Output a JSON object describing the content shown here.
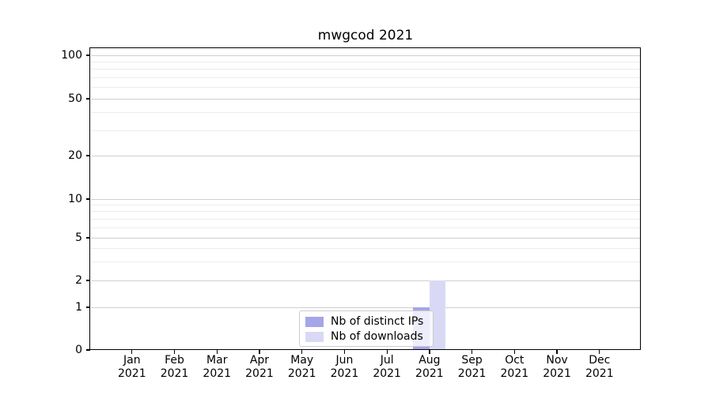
{
  "chart_data": {
    "type": "bar",
    "title": "mwgcod 2021",
    "x_months": [
      "Jan",
      "Feb",
      "Mar",
      "Apr",
      "May",
      "Jun",
      "Jul",
      "Aug",
      "Sep",
      "Oct",
      "Nov",
      "Dec"
    ],
    "x_year": "2021",
    "series": [
      {
        "name": "Nb of distinct IPs",
        "color": "#a5a5ea",
        "values": [
          0,
          0,
          0,
          0,
          0,
          0,
          0,
          1,
          0,
          0,
          0,
          0
        ]
      },
      {
        "name": "Nb of downloads",
        "color": "#d9d9f6",
        "values": [
          0,
          0,
          0,
          0,
          0,
          0,
          0,
          2,
          0,
          0,
          0,
          0
        ]
      }
    ],
    "yscale": "symlog",
    "y_major_ticks": [
      0,
      1,
      2,
      5,
      10,
      20,
      50,
      100
    ],
    "y_minor_ticks": [
      3,
      4,
      6,
      7,
      8,
      9,
      30,
      40,
      60,
      70,
      80,
      90
    ],
    "ylim": [
      0,
      128
    ],
    "xlabel": "",
    "ylabel": "",
    "grid": "horizontal major+minor",
    "legend_position": "lower center"
  },
  "colors": {
    "background": "#ffffff",
    "spine": "#000000",
    "grid_major": "#cfcfcf",
    "grid_minor": "#ececec",
    "bar_distinct_ips": "#a5a5ea",
    "bar_downloads": "#d9d9f6",
    "legend_border": "#cccccc",
    "text": "#000000"
  }
}
